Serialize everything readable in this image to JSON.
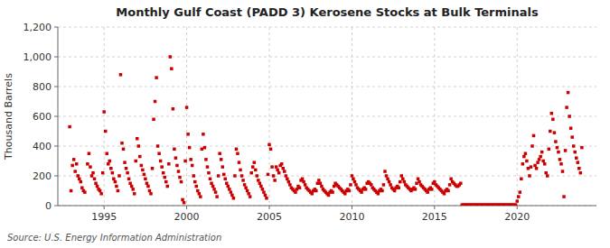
{
  "chart_data": {
    "type": "scatter",
    "title": "Monthly Gulf Coast (PADD 3) Kerosene Stocks at Bulk Terminals",
    "ylabel": "Thousand Barrels",
    "annotations": [
      "Source: U.S. Energy Information Administration"
    ],
    "color": "#CC0000",
    "marker": "square",
    "grid": true,
    "xlim": [
      1992.2,
      2024.8
    ],
    "xticks": [
      1995,
      2000,
      2005,
      2010,
      2015,
      2020
    ],
    "ylim": [
      0,
      1200
    ],
    "yticks": [
      0,
      200,
      400,
      600,
      800,
      {
        "value": 1000,
        "label": "1,000"
      },
      {
        "value": 1200,
        "label": "1,200"
      }
    ],
    "x": [
      1992.917,
      1993.0,
      1993.083,
      1993.167,
      1993.25,
      1993.333,
      1993.417,
      1993.5,
      1993.583,
      1993.667,
      1993.75,
      1993.833,
      1994.0,
      1994.083,
      1994.167,
      1994.25,
      1994.333,
      1994.417,
      1994.5,
      1994.583,
      1994.667,
      1994.75,
      1994.833,
      1994.917,
      1995.0,
      1995.083,
      1995.167,
      1995.25,
      1995.333,
      1995.417,
      1995.5,
      1995.583,
      1995.667,
      1995.75,
      1995.833,
      1995.917,
      1996.0,
      1996.083,
      1996.167,
      1996.25,
      1996.333,
      1996.417,
      1996.5,
      1996.583,
      1996.667,
      1996.75,
      1996.833,
      1996.917,
      1997.0,
      1997.083,
      1997.167,
      1997.25,
      1997.333,
      1997.417,
      1997.5,
      1997.583,
      1997.667,
      1997.75,
      1997.833,
      1997.917,
      1998.0,
      1998.083,
      1998.167,
      1998.25,
      1998.333,
      1998.417,
      1998.5,
      1998.583,
      1998.667,
      1998.75,
      1998.833,
      1998.917,
      1999.0,
      1999.083,
      1999.167,
      1999.25,
      1999.333,
      1999.417,
      1999.5,
      1999.583,
      1999.667,
      1999.75,
      1999.833,
      1999.917,
      2000.0,
      2000.083,
      2000.167,
      2000.25,
      2000.333,
      2000.417,
      2000.5,
      2000.583,
      2000.667,
      2000.75,
      2000.833,
      2000.917,
      2001.0,
      2001.083,
      2001.167,
      2001.25,
      2001.333,
      2001.417,
      2001.5,
      2001.583,
      2001.667,
      2001.75,
      2001.833,
      2001.917,
      2002.0,
      2002.083,
      2002.167,
      2002.25,
      2002.333,
      2002.417,
      2002.5,
      2002.583,
      2002.667,
      2002.75,
      2002.833,
      2002.917,
      2003.0,
      2003.083,
      2003.167,
      2003.25,
      2003.333,
      2003.417,
      2003.5,
      2003.583,
      2003.667,
      2003.75,
      2003.833,
      2003.917,
      2004.0,
      2004.083,
      2004.167,
      2004.25,
      2004.333,
      2004.417,
      2004.5,
      2004.583,
      2004.667,
      2004.75,
      2004.833,
      2004.917,
      2005.0,
      2005.083,
      2005.167,
      2005.25,
      2005.333,
      2005.417,
      2005.5,
      2005.583,
      2005.667,
      2005.75,
      2005.833,
      2005.917,
      2006.0,
      2006.083,
      2006.167,
      2006.25,
      2006.333,
      2006.417,
      2006.5,
      2006.583,
      2006.667,
      2006.75,
      2006.833,
      2006.917,
      2007.0,
      2007.083,
      2007.167,
      2007.25,
      2007.333,
      2007.417,
      2007.5,
      2007.583,
      2007.667,
      2007.75,
      2007.833,
      2007.917,
      2008.0,
      2008.083,
      2008.167,
      2008.25,
      2008.333,
      2008.417,
      2008.5,
      2008.583,
      2008.667,
      2008.75,
      2008.833,
      2008.917,
      2009.0,
      2009.083,
      2009.167,
      2009.25,
      2009.333,
      2009.417,
      2009.5,
      2009.583,
      2009.667,
      2009.75,
      2009.833,
      2009.917,
      2010.0,
      2010.083,
      2010.167,
      2010.25,
      2010.333,
      2010.417,
      2010.5,
      2010.583,
      2010.667,
      2010.75,
      2010.833,
      2010.917,
      2011.0,
      2011.083,
      2011.167,
      2011.25,
      2011.333,
      2011.417,
      2011.5,
      2011.583,
      2011.667,
      2011.75,
      2011.833,
      2011.917,
      2012.0,
      2012.083,
      2012.167,
      2012.25,
      2012.333,
      2012.417,
      2012.5,
      2012.583,
      2012.667,
      2012.75,
      2012.833,
      2012.917,
      2013.0,
      2013.083,
      2013.167,
      2013.25,
      2013.333,
      2013.417,
      2013.5,
      2013.583,
      2013.667,
      2013.75,
      2013.833,
      2013.917,
      2014.0,
      2014.083,
      2014.167,
      2014.25,
      2014.333,
      2014.417,
      2014.5,
      2014.583,
      2014.667,
      2014.75,
      2014.833,
      2014.917,
      2015.0,
      2015.083,
      2015.167,
      2015.25,
      2015.333,
      2015.417,
      2015.5,
      2015.583,
      2015.667,
      2015.75,
      2015.833,
      2015.917,
      2016.0,
      2016.083,
      2016.167,
      2016.25,
      2016.333,
      2016.417,
      2016.5,
      2016.583,
      2016.667,
      2016.75,
      2016.833,
      2016.917,
      2017.0,
      2017.083,
      2017.167,
      2017.25,
      2017.333,
      2017.417,
      2017.5,
      2017.583,
      2017.667,
      2017.75,
      2017.833,
      2017.917,
      2018.0,
      2018.083,
      2018.167,
      2018.25,
      2018.333,
      2018.417,
      2018.5,
      2018.583,
      2018.667,
      2018.75,
      2018.833,
      2018.917,
      2019.0,
      2019.083,
      2019.167,
      2019.25,
      2019.333,
      2019.417,
      2019.5,
      2019.583,
      2019.667,
      2019.75,
      2019.833,
      2019.917,
      2020.0,
      2020.083,
      2020.167,
      2020.25,
      2020.333,
      2020.417,
      2020.5,
      2020.583,
      2020.667,
      2020.75,
      2020.833,
      2020.917,
      2021.0,
      2021.083,
      2021.167,
      2021.25,
      2021.333,
      2021.417,
      2021.5,
      2021.583,
      2021.667,
      2021.75,
      2021.833,
      2021.917,
      2022.0,
      2022.083,
      2022.167,
      2022.25,
      2022.333,
      2022.417,
      2022.5,
      2022.583,
      2022.667,
      2022.75,
      2022.833,
      2022.917,
      2023.0,
      2023.083,
      2023.167,
      2023.25,
      2023.333,
      2023.417,
      2023.5,
      2023.583,
      2023.667,
      2023.75,
      2023.833,
      2023.917
    ],
    "values": [
      530,
      100,
      270,
      310,
      230,
      280,
      200,
      180,
      160,
      120,
      100,
      90,
      280,
      350,
      260,
      200,
      220,
      180,
      150,
      130,
      110,
      100,
      80,
      220,
      630,
      500,
      350,
      280,
      300,
      250,
      220,
      180,
      160,
      130,
      100,
      200,
      880,
      420,
      380,
      290,
      250,
      220,
      180,
      150,
      130,
      110,
      80,
      300,
      450,
      400,
      330,
      270,
      240,
      210,
      180,
      150,
      130,
      100,
      80,
      250,
      580,
      700,
      860,
      400,
      350,
      300,
      260,
      220,
      190,
      160,
      130,
      280,
      1000,
      920,
      650,
      380,
      320,
      270,
      230,
      190,
      160,
      40,
      20,
      300,
      660,
      480,
      390,
      310,
      270,
      200,
      160,
      130,
      100,
      80,
      60,
      380,
      480,
      390,
      310,
      260,
      220,
      180,
      150,
      130,
      110,
      90,
      60,
      200,
      350,
      310,
      260,
      210,
      180,
      150,
      130,
      110,
      90,
      70,
      50,
      200,
      380,
      350,
      290,
      240,
      200,
      170,
      140,
      120,
      100,
      80,
      60,
      220,
      260,
      290,
      240,
      200,
      170,
      150,
      130,
      110,
      90,
      70,
      50,
      210,
      410,
      380,
      260,
      200,
      170,
      260,
      240,
      220,
      270,
      280,
      250,
      230,
      200,
      180,
      160,
      140,
      120,
      110,
      100,
      90,
      110,
      130,
      120,
      170,
      180,
      160,
      140,
      120,
      110,
      100,
      90,
      80,
      100,
      110,
      100,
      150,
      170,
      150,
      130,
      110,
      100,
      90,
      80,
      70,
      90,
      100,
      90,
      130,
      150,
      140,
      130,
      120,
      110,
      100,
      90,
      80,
      100,
      110,
      100,
      140,
      200,
      180,
      160,
      140,
      120,
      110,
      100,
      90,
      110,
      120,
      110,
      150,
      160,
      150,
      140,
      120,
      110,
      100,
      90,
      80,
      100,
      110,
      100,
      140,
      230,
      200,
      180,
      160,
      140,
      120,
      110,
      100,
      120,
      130,
      120,
      160,
      200,
      180,
      160,
      140,
      130,
      120,
      110,
      100,
      110,
      120,
      110,
      150,
      180,
      160,
      140,
      130,
      120,
      110,
      100,
      90,
      110,
      120,
      110,
      150,
      160,
      140,
      130,
      120,
      110,
      100,
      90,
      80,
      100,
      110,
      100,
      140,
      180,
      160,
      150,
      140,
      130,
      130,
      140,
      150,
      5,
      5,
      5,
      5,
      5,
      5,
      5,
      5,
      5,
      5,
      5,
      5,
      5,
      5,
      5,
      5,
      5,
      5,
      5,
      5,
      5,
      5,
      5,
      5,
      5,
      5,
      5,
      5,
      5,
      5,
      5,
      5,
      5,
      5,
      5,
      5,
      5,
      5,
      5,
      5,
      30,
      60,
      90,
      180,
      280,
      330,
      350,
      300,
      250,
      200,
      260,
      400,
      470,
      270,
      250,
      290,
      310,
      330,
      360,
      300,
      280,
      220,
      200,
      380,
      500,
      620,
      580,
      490,
      430,
      390,
      360,
      310,
      280,
      230,
      60,
      370,
      660,
      760,
      600,
      520,
      460,
      400,
      360,
      320,
      290,
      250,
      220,
      390
    ]
  }
}
